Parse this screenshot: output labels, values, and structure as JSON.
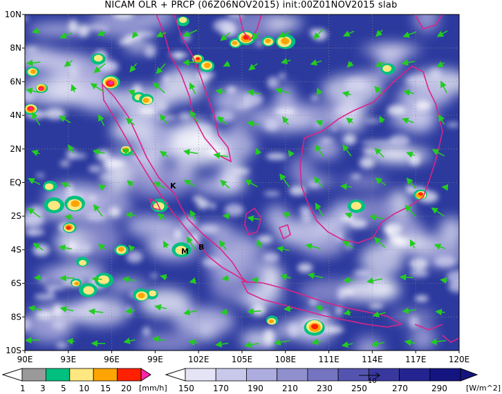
{
  "title": "NICAM OLR + PRCP (06Z06NOV2015) init:00Z01NOV2015 slab",
  "map": {
    "lat_labels": [
      "10N",
      "8N",
      "6N",
      "4N",
      "2N",
      "EQ",
      "2S",
      "4S",
      "6S",
      "8S",
      "10S"
    ],
    "lon_labels": [
      "90E",
      "93E",
      "96E",
      "99E",
      "102E",
      "105E",
      "108E",
      "111E",
      "114E",
      "117E",
      "120E"
    ],
    "lat_range": [
      -10,
      10
    ],
    "lon_range": [
      90,
      120
    ],
    "place_markers": [
      "K",
      "M",
      "B"
    ],
    "vector_color": "#22cc22",
    "coast_color": "#dd2288",
    "background_color": "#2c3a9e"
  },
  "precip_colorbar": {
    "labels": [
      "1",
      "3",
      "5",
      "10",
      "15",
      "20"
    ],
    "unit": "[mm/h]",
    "colors": [
      "#ffffff",
      "#9a9a9a",
      "#00c080",
      "#ffe880",
      "#ffa400",
      "#ff2000",
      "#ff22aa"
    ]
  },
  "olr_colorbar": {
    "labels": [
      "150",
      "170",
      "190",
      "210",
      "230",
      "250",
      "270",
      "290"
    ],
    "unit": "[W/m^2]",
    "vector_label": "10",
    "colors": [
      "#ffffff",
      "#e4e4f6",
      "#c8c8ea",
      "#acacde",
      "#9090cf",
      "#7474c0",
      "#5454b0",
      "#38389e",
      "#242490",
      "#141480"
    ]
  }
}
